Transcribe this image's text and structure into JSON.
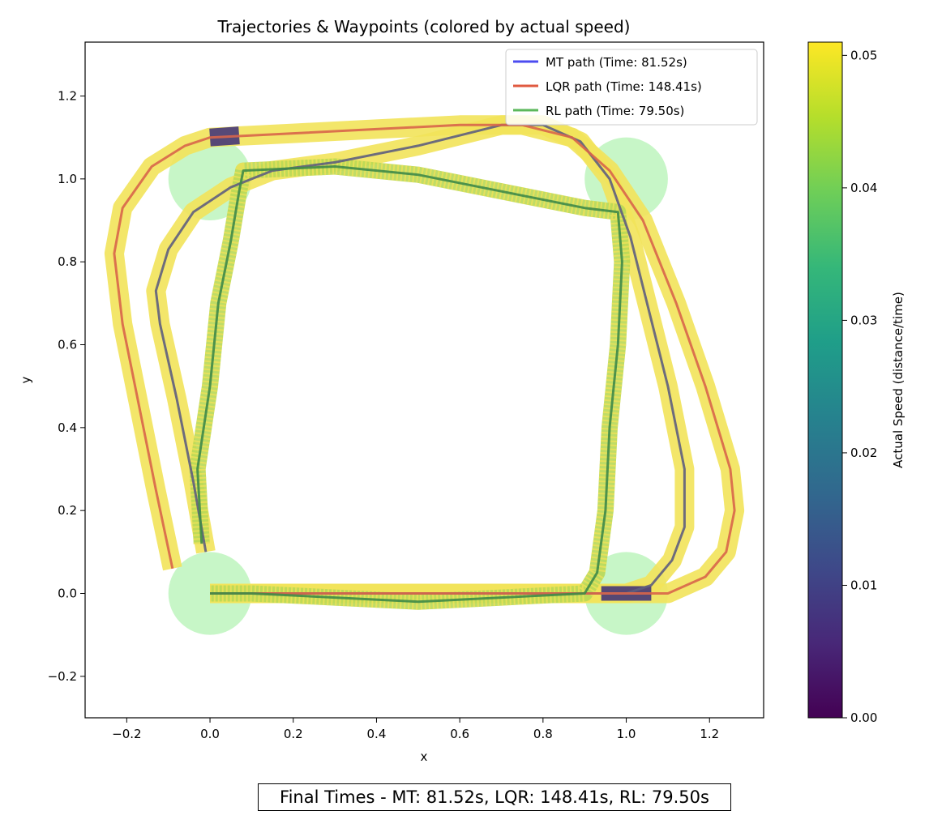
{
  "chart_data": {
    "type": "line",
    "title": "Trajectories & Waypoints (colored by actual speed)",
    "xlabel": "x",
    "ylabel": "y",
    "xlim": [
      -0.3,
      1.33
    ],
    "ylim": [
      -0.3,
      1.33
    ],
    "xticks": [
      "−0.2",
      "0.0",
      "0.2",
      "0.4",
      "0.6",
      "0.8",
      "1.0",
      "1.2"
    ],
    "xtick_values": [
      -0.2,
      0.0,
      0.2,
      0.4,
      0.6,
      0.8,
      1.0,
      1.2
    ],
    "yticks": [
      "−0.2",
      "0.0",
      "0.2",
      "0.4",
      "0.6",
      "0.8",
      "1.0",
      "1.2"
    ],
    "ytick_values": [
      -0.2,
      0.0,
      0.2,
      0.4,
      0.6,
      0.8,
      1.0,
      1.2
    ],
    "grid": false,
    "legend_position": "top-right",
    "waypoints": [
      {
        "x": 0.0,
        "y": 0.0,
        "r": 0.1
      },
      {
        "x": 0.0,
        "y": 1.0,
        "r": 0.1
      },
      {
        "x": 1.0,
        "y": 1.0,
        "r": 0.1
      },
      {
        "x": 1.0,
        "y": 0.0,
        "r": 0.1
      }
    ],
    "waypoint_color": "#90ee90",
    "series": [
      {
        "name": "MT path (Time: 81.52s)",
        "color": "#4c4cf0",
        "center_color": "#5e5e7e",
        "points": [
          [
            0.0,
            0.0
          ],
          [
            0.3,
            0.0
          ],
          [
            0.6,
            0.0
          ],
          [
            0.85,
            0.0
          ],
          [
            0.93,
            0.0
          ],
          [
            1.0,
            0.0
          ],
          [
            1.06,
            0.02
          ],
          [
            1.11,
            0.08
          ],
          [
            1.14,
            0.16
          ],
          [
            1.14,
            0.3
          ],
          [
            1.1,
            0.5
          ],
          [
            1.05,
            0.7
          ],
          [
            1.01,
            0.86
          ],
          [
            0.96,
            1.0
          ],
          [
            0.89,
            1.09
          ],
          [
            0.8,
            1.13
          ],
          [
            0.7,
            1.13
          ],
          [
            0.5,
            1.08
          ],
          [
            0.3,
            1.04
          ],
          [
            0.15,
            1.02
          ],
          [
            0.05,
            0.98
          ],
          [
            -0.04,
            0.92
          ],
          [
            -0.1,
            0.83
          ],
          [
            -0.13,
            0.73
          ],
          [
            -0.12,
            0.65
          ],
          [
            -0.08,
            0.47
          ],
          [
            -0.04,
            0.27
          ],
          [
            -0.01,
            0.1
          ]
        ]
      },
      {
        "name": "LQR path (Time: 148.41s)",
        "color": "#e05a40",
        "center_color": "#d8654a",
        "points": [
          [
            -0.09,
            0.06
          ],
          [
            -0.13,
            0.25
          ],
          [
            -0.17,
            0.45
          ],
          [
            -0.21,
            0.65
          ],
          [
            -0.23,
            0.82
          ],
          [
            -0.21,
            0.93
          ],
          [
            -0.14,
            1.03
          ],
          [
            -0.06,
            1.08
          ],
          [
            0.0,
            1.1
          ],
          [
            0.2,
            1.11
          ],
          [
            0.4,
            1.12
          ],
          [
            0.6,
            1.13
          ],
          [
            0.75,
            1.13
          ],
          [
            0.87,
            1.1
          ],
          [
            0.96,
            1.02
          ],
          [
            1.04,
            0.9
          ],
          [
            1.12,
            0.7
          ],
          [
            1.19,
            0.5
          ],
          [
            1.25,
            0.3
          ],
          [
            1.26,
            0.2
          ],
          [
            1.24,
            0.1
          ],
          [
            1.19,
            0.04
          ],
          [
            1.1,
            0.0
          ],
          [
            1.0,
            0.0
          ],
          [
            0.8,
            0.0
          ],
          [
            0.5,
            0.0
          ],
          [
            0.2,
            0.0
          ],
          [
            0.0,
            0.0
          ]
        ]
      },
      {
        "name": "RL path (Time: 79.50s)",
        "color": "#5cb85c",
        "center_color": "#3f8a48",
        "points": [
          [
            -0.02,
            0.12
          ],
          [
            -0.03,
            0.3
          ],
          [
            0.0,
            0.5
          ],
          [
            0.02,
            0.7
          ],
          [
            0.05,
            0.85
          ],
          [
            0.07,
            0.97
          ],
          [
            0.08,
            1.02
          ],
          [
            0.3,
            1.03
          ],
          [
            0.5,
            1.01
          ],
          [
            0.7,
            0.97
          ],
          [
            0.9,
            0.93
          ],
          [
            0.98,
            0.92
          ],
          [
            0.99,
            0.8
          ],
          [
            0.98,
            0.6
          ],
          [
            0.96,
            0.4
          ],
          [
            0.95,
            0.2
          ],
          [
            0.93,
            0.05
          ],
          [
            0.9,
            0.0
          ],
          [
            0.7,
            -0.01
          ],
          [
            0.5,
            -0.02
          ],
          [
            0.3,
            -0.01
          ],
          [
            0.1,
            0.0
          ],
          [
            0.0,
            0.0
          ]
        ]
      }
    ],
    "colorbar": {
      "label": "Actual Speed (distance/time)",
      "min": 0.0,
      "max": 0.051,
      "ticks": [
        "0.00",
        "0.01",
        "0.02",
        "0.03",
        "0.04",
        "0.05"
      ],
      "tick_values": [
        0.0,
        0.01,
        0.02,
        0.03,
        0.04,
        0.05
      ],
      "colormap": [
        "#440154",
        "#482878",
        "#3e4989",
        "#31688e",
        "#26828e",
        "#1f9e89",
        "#35b779",
        "#6ece58",
        "#b5de2b",
        "#fde725"
      ]
    },
    "speed_band_main_color": "#f2e35a",
    "speed_band_rl_color": "#b9d855",
    "speed_band_slow_color": "#3b2d79"
  },
  "footer": {
    "text": "Final Times - MT: 81.52s, LQR: 148.41s, RL: 79.50s"
  }
}
